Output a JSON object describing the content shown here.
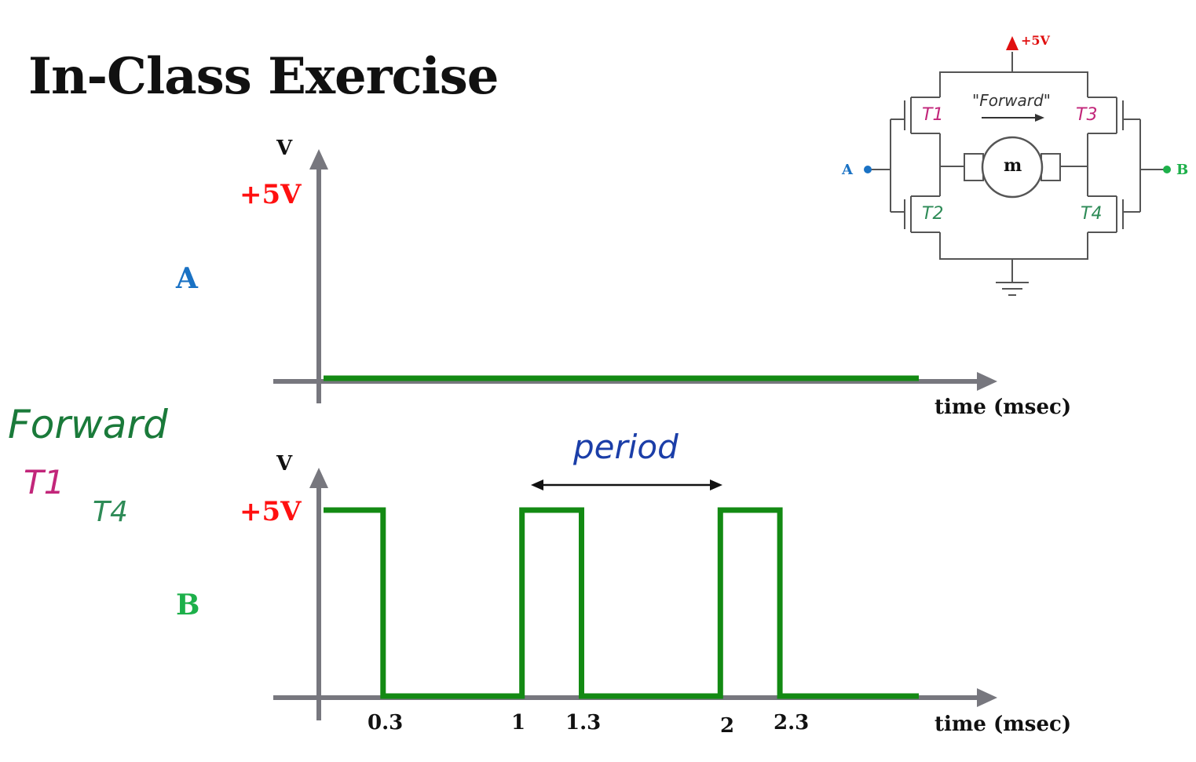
{
  "title": "In-Class Exercise",
  "annotations": {
    "forward": "Forward",
    "t1": "T1",
    "t4": "T4",
    "period": "period"
  },
  "colors": {
    "signal": "#138a13",
    "axis": "#77777e",
    "plus5": "#ff1010",
    "a_label": "#1a72c4",
    "b_label": "#1db04a",
    "transistor_pink": "#c2267a",
    "transistor_green": "#2e8b57",
    "handwriting_blue": "#1b3ea8"
  },
  "circuit": {
    "supply": "+5V",
    "motor": "m",
    "direction": "\"Forward\"",
    "node_a": "A",
    "node_b": "B",
    "transistors": [
      "T1",
      "T2",
      "T3",
      "T4"
    ]
  },
  "chart_data": [
    {
      "type": "line",
      "signal_name": "A",
      "y_axis_label": "V",
      "y_high_label": "+5V",
      "x_axis_label": "time (msec)",
      "xlim": [
        0,
        3
      ],
      "ylim": [
        0,
        5
      ],
      "points": [
        [
          0,
          0
        ],
        [
          3,
          0
        ]
      ],
      "tick_labels": []
    },
    {
      "type": "line",
      "signal_name": "B",
      "y_axis_label": "V",
      "y_high_label": "+5V",
      "x_axis_label": "time (msec)",
      "xlim": [
        0,
        3
      ],
      "ylim": [
        0,
        5
      ],
      "points": [
        [
          0,
          5
        ],
        [
          0.3,
          5
        ],
        [
          0.3,
          0
        ],
        [
          1,
          0
        ],
        [
          1,
          5
        ],
        [
          1.3,
          5
        ],
        [
          1.3,
          0
        ],
        [
          2,
          0
        ],
        [
          2,
          5
        ],
        [
          2.3,
          5
        ],
        [
          2.3,
          0
        ],
        [
          3,
          0
        ]
      ],
      "tick_labels": [
        "0.3",
        "1",
        "1.3",
        "2",
        "2.3"
      ]
    }
  ]
}
